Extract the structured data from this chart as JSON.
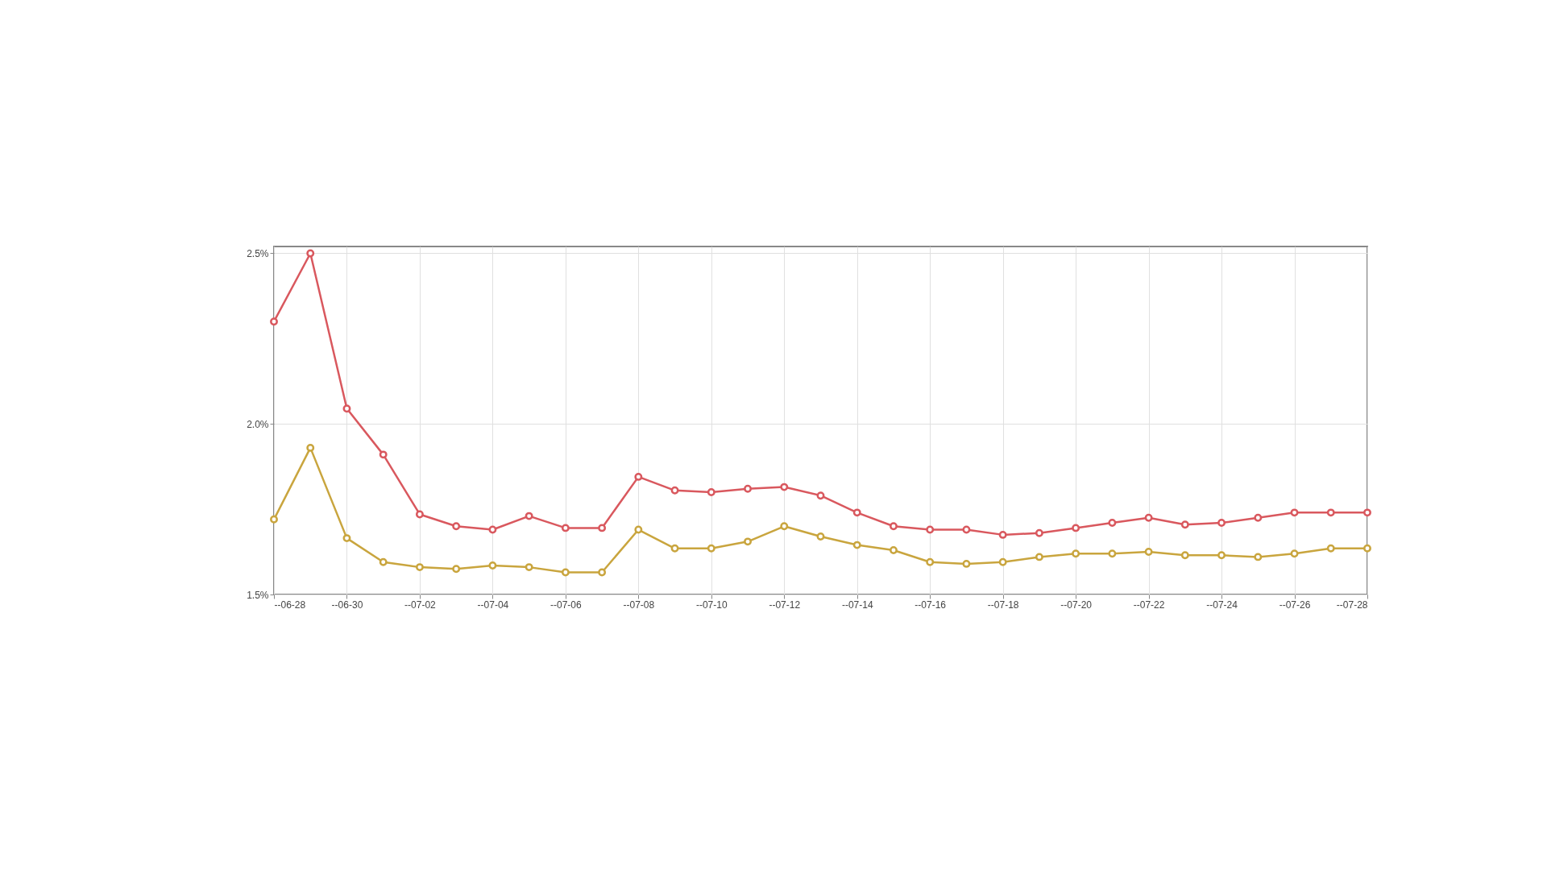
{
  "chart_data": {
    "type": "line",
    "x": [
      "--06-28",
      "--06-29",
      "--06-30",
      "--07-01",
      "--07-02",
      "--07-03",
      "--07-04",
      "--07-05",
      "--07-06",
      "--07-07",
      "--07-08",
      "--07-09",
      "--07-10",
      "--07-11",
      "--07-12",
      "--07-13",
      "--07-14",
      "--07-15",
      "--07-16",
      "--07-17",
      "--07-18",
      "--07-19",
      "--07-20",
      "--07-21",
      "--07-22",
      "--07-23",
      "--07-24",
      "--07-25",
      "--07-26",
      "--07-27",
      "--07-28"
    ],
    "series": [
      {
        "color": "#d9585e",
        "values": [
          2.3,
          2.5,
          2.045,
          1.91,
          1.735,
          1.7,
          1.69,
          1.73,
          1.695,
          1.695,
          1.845,
          1.805,
          1.8,
          1.81,
          1.815,
          1.79,
          1.74,
          1.7,
          1.69,
          1.69,
          1.675,
          1.68,
          1.695,
          1.71,
          1.725,
          1.705,
          1.71,
          1.725,
          1.74,
          1.74,
          1.74
        ]
      },
      {
        "color": "#c9a53e",
        "values": [
          1.72,
          1.93,
          1.665,
          1.595,
          1.58,
          1.575,
          1.585,
          1.58,
          1.565,
          1.565,
          1.69,
          1.635,
          1.635,
          1.655,
          1.7,
          1.67,
          1.645,
          1.63,
          1.595,
          1.59,
          1.595,
          1.61,
          1.62,
          1.62,
          1.625,
          1.615,
          1.615,
          1.61,
          1.62,
          1.635,
          1.635
        ]
      }
    ],
    "xlim": [
      "--06-28",
      "--07-28"
    ],
    "xticks": [
      "--06-28",
      "--06-30",
      "--07-02",
      "--07-04",
      "--07-06",
      "--07-08",
      "--07-10",
      "--07-12",
      "--07-14",
      "--07-16",
      "--07-18",
      "--07-20",
      "--07-22",
      "--07-24",
      "--07-26",
      "--07-28"
    ],
    "ylim": [
      1.5,
      2.52
    ],
    "yticks": [
      {
        "value": 1.5,
        "label": "1.5%"
      },
      {
        "value": 2.0,
        "label": "2.0%"
      },
      {
        "value": 2.5,
        "label": "2.5%"
      }
    ],
    "grid": true,
    "marker": "circle",
    "line_style": "solid",
    "legend": false
  }
}
